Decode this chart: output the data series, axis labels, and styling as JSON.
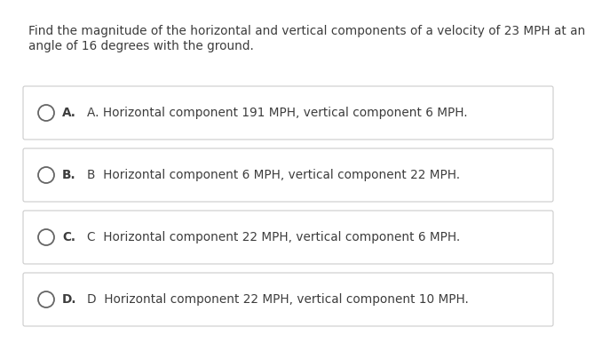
{
  "question_line1": "Find the magnitude of the horizontal and vertical components of a velocity of 23 MPH at an",
  "question_line2": "angle of 16 degrees with the ground.",
  "options": [
    {
      "letter": "A.",
      "text": "A. Horizontal component 191 MPH, vertical component 6 MPH."
    },
    {
      "letter": "B.",
      "text": "B  Horizontal component 6 MPH, vertical component 22 MPH."
    },
    {
      "letter": "C.",
      "text": "C  Horizontal component 22 MPH, vertical component 6 MPH."
    },
    {
      "letter": "D.",
      "text": "D  Horizontal component 22 MPH, vertical component 10 MPH."
    }
  ],
  "bg_color": "#ffffff",
  "box_facecolor": "#ffffff",
  "box_edgecolor": "#cccccc",
  "text_color": "#3d3d3d",
  "circle_color": "#666666",
  "question_fontsize": 9.8,
  "option_fontsize": 9.8,
  "letter_fontsize": 9.8
}
